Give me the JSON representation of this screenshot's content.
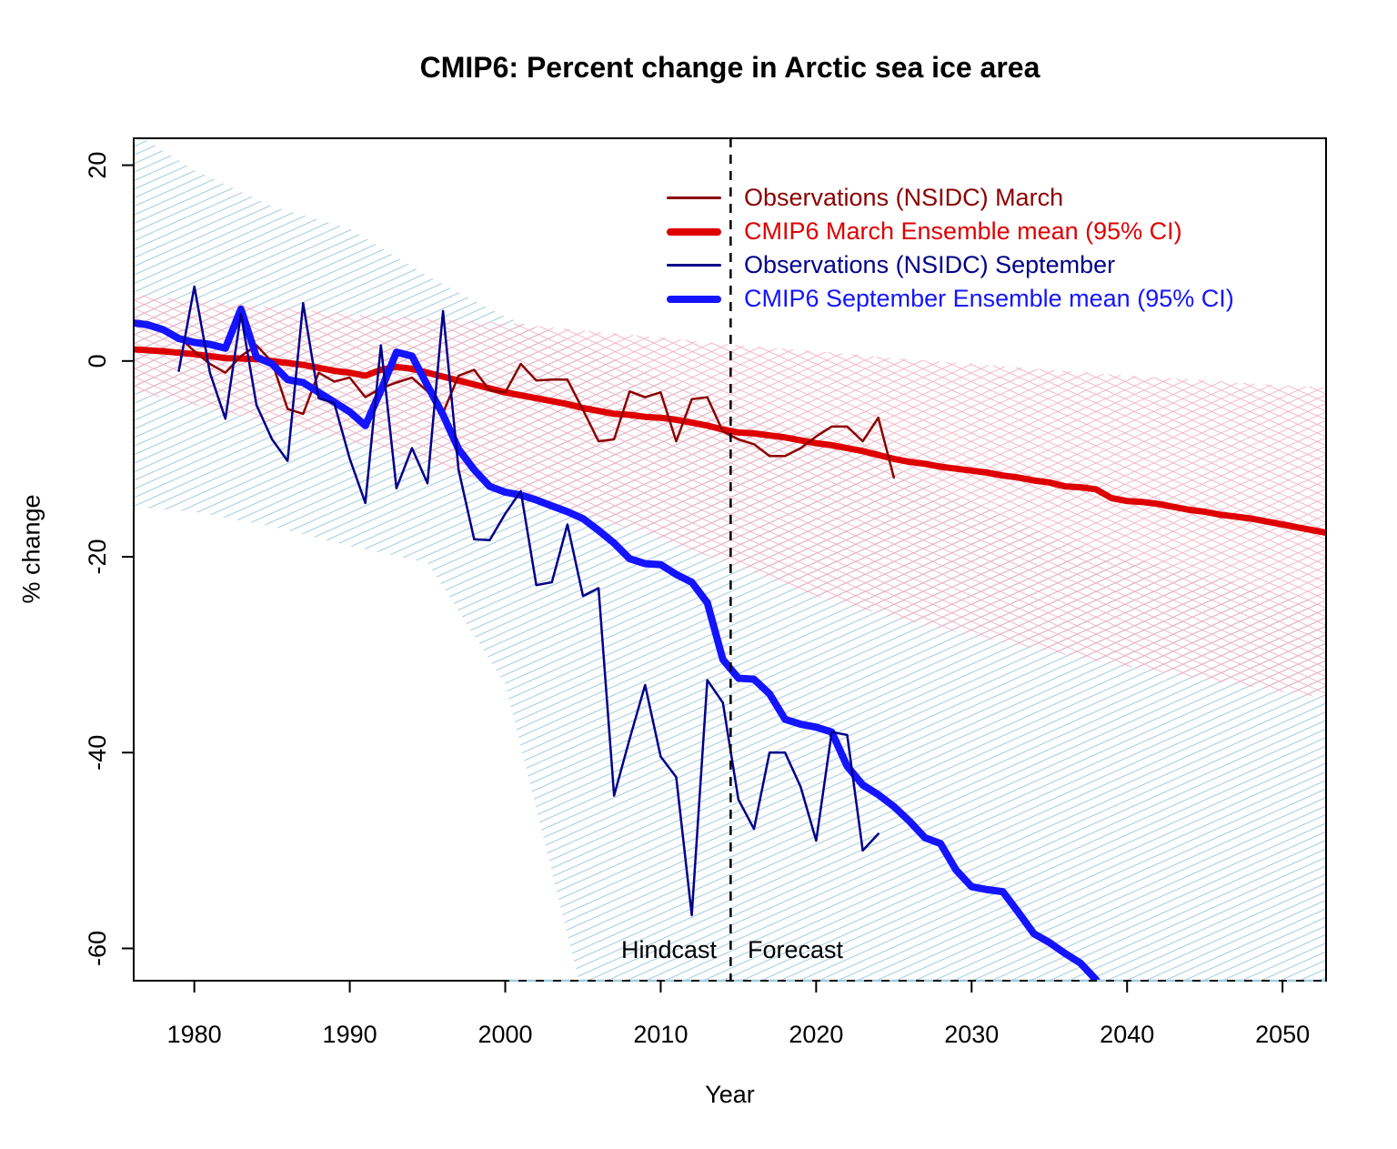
{
  "figure": {
    "title": "CMIP6: Percent change in Arctic sea ice area",
    "x_axis_label": "Year",
    "y_axis_label": "% change"
  },
  "legend": {
    "items": [
      {
        "label": "Observations (NSIDC) March",
        "color": "#8B0000",
        "thick": false
      },
      {
        "label": "CMIP6 March Ensemble mean (95% CI)",
        "color": "#DE0000",
        "thick": true
      },
      {
        "label": "Observations (NSIDC) September",
        "color": "#00008B",
        "thick": false
      },
      {
        "label": "CMIP6 September Ensemble mean (95% CI)",
        "color": "#1414FF",
        "thick": true
      }
    ]
  },
  "annotations": {
    "hindcast_label": "Hindcast",
    "forecast_label": "Forecast",
    "divider_year": 2014.5
  },
  "colors": {
    "march_obs": "#8B0000",
    "march_mean": "#DE0000",
    "sept_obs": "#00008B",
    "sept_mean": "#1414FF",
    "march_ci_hatch": "#F2AEC0",
    "sept_ci_hatch": "#A3CBDF",
    "axis": "#000000"
  },
  "chart_data": {
    "type": "line",
    "title": "CMIP6: Percent change in Arctic sea ice area",
    "xlabel": "Year",
    "ylabel": "% change",
    "xlim": [
      1976.1,
      2052.8
    ],
    "ylim": [
      -63.3,
      22.75
    ],
    "x_ticks": [
      1980,
      1990,
      2000,
      2010,
      2020,
      2030,
      2040,
      2050
    ],
    "y_ticks": [
      20,
      0,
      -20,
      -40,
      -60
    ],
    "grid": false,
    "legend_position": "top-right-inside",
    "bands": [
      {
        "name": "CMIP6 March 95% CI",
        "hatch_color": "#F2AEC0",
        "cross_hatch": true,
        "years": [
          1976,
          1980,
          1985,
          1990,
          1995,
          2000,
          2005,
          2010,
          2015,
          2020,
          2025,
          2030,
          2035,
          2040,
          2045,
          2050,
          2053
        ],
        "upper": [
          6.8,
          6.2,
          5.5,
          4.8,
          4.3,
          3.9,
          3.1,
          2.4,
          1.6,
          1.0,
          0.3,
          -0.3,
          -0.9,
          -1.5,
          -2.0,
          -2.5,
          -2.7
        ],
        "lower": [
          -3.0,
          -4.5,
          -6.3,
          -8.2,
          -10.5,
          -13.0,
          -15.5,
          -18.2,
          -21.0,
          -24.0,
          -26.2,
          -28.0,
          -29.7,
          -31.2,
          -32.5,
          -33.8,
          -34.5
        ]
      },
      {
        "name": "CMIP6 September 95% CI",
        "hatch_color": "#A3CBDF",
        "cross_hatch": false,
        "years": [
          1976,
          1980,
          1985,
          1990,
          1995,
          2000,
          2005,
          2010,
          2015,
          2020,
          2025,
          2030,
          2035,
          2040,
          2045,
          2050,
          2053
        ],
        "upper": [
          23.5,
          19.5,
          15.8,
          13.5,
          8.7,
          4.5,
          1.5,
          -1.5,
          -4.5,
          -7.5,
          -11.0,
          -14.5,
          -18.0,
          -20.0,
          -21.8,
          -23.8,
          -25.0
        ],
        "lower": [
          -14.9,
          -15.4,
          -16.9,
          -18.9,
          -20.6,
          -33.0,
          -65.0,
          -75.0,
          -75.0,
          -75.0,
          -75.0,
          -75.0,
          -75.0,
          -75.0,
          -75.0,
          -75.0,
          -75.0
        ]
      }
    ],
    "series": [
      {
        "name": "CMIP6 March Ensemble mean",
        "color": "#DE0000",
        "width": 7,
        "years": [
          1976,
          1978,
          1980,
          1982,
          1984,
          1986,
          1987,
          1988,
          1989,
          1990,
          1991,
          1992,
          1993,
          1994,
          1995,
          1996,
          1997,
          1998,
          1999,
          2000,
          2001,
          2002,
          2003,
          2004,
          2005,
          2006,
          2007,
          2008,
          2009,
          2010,
          2011,
          2012,
          2013,
          2014,
          2015,
          2016,
          2017,
          2018,
          2019,
          2020,
          2021,
          2022,
          2023,
          2024,
          2025,
          2026,
          2027,
          2028,
          2029,
          2030,
          2031,
          2032,
          2033,
          2034,
          2035,
          2036,
          2037,
          2038,
          2039,
          2040,
          2041,
          2042,
          2043,
          2044,
          2045,
          2046,
          2047,
          2048,
          2049,
          2050,
          2051,
          2052,
          2053
        ],
        "values": [
          1.2,
          1.0,
          0.7,
          0.3,
          0.2,
          -0.2,
          -0.4,
          -0.7,
          -1.0,
          -1.2,
          -1.5,
          -0.9,
          -0.6,
          -0.8,
          -1.2,
          -1.6,
          -2.0,
          -2.4,
          -2.8,
          -3.2,
          -3.5,
          -3.8,
          -4.1,
          -4.4,
          -4.8,
          -5.1,
          -5.4,
          -5.5,
          -5.7,
          -5.8,
          -6.0,
          -6.3,
          -6.6,
          -7.0,
          -7.3,
          -7.4,
          -7.6,
          -7.8,
          -8.1,
          -8.4,
          -8.6,
          -8.9,
          -9.2,
          -9.6,
          -10.0,
          -10.3,
          -10.5,
          -10.8,
          -11.0,
          -11.2,
          -11.4,
          -11.7,
          -11.9,
          -12.2,
          -12.4,
          -12.8,
          -12.9,
          -13.1,
          -14.0,
          -14.3,
          -14.4,
          -14.6,
          -14.9,
          -15.2,
          -15.4,
          -15.7,
          -15.9,
          -16.1,
          -16.4,
          -16.7,
          -17.0,
          -17.3,
          -17.6
        ]
      },
      {
        "name": "Observations (NSIDC) March",
        "color": "#8B0000",
        "width": 2.5,
        "years": [
          1979,
          1980,
          1981,
          1982,
          1983,
          1984,
          1985,
          1986,
          1987,
          1988,
          1989,
          1990,
          1991,
          1992,
          1993,
          1994,
          1995,
          1996,
          1997,
          1998,
          1999,
          2000,
          2001,
          2002,
          2003,
          2004,
          2005,
          2006,
          2007,
          2008,
          2009,
          2010,
          2011,
          2012,
          2013,
          2014,
          2015,
          2016,
          2017,
          2018,
          2019,
          2020,
          2021,
          2022,
          2023,
          2024,
          2025
        ],
        "values": [
          2.5,
          1.0,
          -0.3,
          -1.2,
          0.5,
          1.6,
          -0.1,
          -4.9,
          -5.4,
          -1.2,
          -2.1,
          -1.7,
          -3.7,
          -2.8,
          -2.2,
          -1.7,
          -3.1,
          -5.3,
          -1.5,
          -0.9,
          -3.0,
          -3.2,
          -0.3,
          -2.0,
          -1.9,
          -1.9,
          -5.0,
          -8.2,
          -8.0,
          -3.1,
          -3.7,
          -3.2,
          -8.2,
          -3.9,
          -3.7,
          -7.2,
          -8.0,
          -8.5,
          -9.7,
          -9.7,
          -8.9,
          -7.7,
          -6.7,
          -6.7,
          -8.2,
          -5.8,
          -11.9
        ]
      },
      {
        "name": "CMIP6 September Ensemble mean",
        "color": "#1414FF",
        "width": 8,
        "years": [
          1976,
          1977,
          1978,
          1979,
          1980,
          1981,
          1982,
          1983,
          1984,
          1985,
          1986,
          1987,
          1988,
          1989,
          1990,
          1991,
          1992,
          1993,
          1994,
          1995,
          1996,
          1997,
          1998,
          1999,
          2000,
          2001,
          2002,
          2003,
          2004,
          2005,
          2006,
          2007,
          2008,
          2009,
          2010,
          2011,
          2012,
          2013,
          2014,
          2015,
          2016,
          2017,
          2018,
          2019,
          2020,
          2021,
          2022,
          2023,
          2024,
          2025,
          2026,
          2027,
          2028,
          2029,
          2030,
          2031,
          2032,
          2033,
          2034,
          2035,
          2036,
          2037,
          2038,
          2038.6
        ],
        "values": [
          3.9,
          3.7,
          3.2,
          2.3,
          1.9,
          1.7,
          1.3,
          5.3,
          0.4,
          -0.3,
          -1.9,
          -2.2,
          -3.2,
          -4.2,
          -5.2,
          -6.6,
          -3.0,
          0.9,
          0.5,
          -2.5,
          -5.5,
          -9.0,
          -11.1,
          -12.8,
          -13.4,
          -13.7,
          -14.2,
          -14.8,
          -15.4,
          -16.1,
          -17.3,
          -18.6,
          -20.2,
          -20.7,
          -20.8,
          -21.8,
          -22.6,
          -24.7,
          -30.5,
          -32.4,
          -32.5,
          -34.0,
          -36.6,
          -37.1,
          -37.4,
          -37.9,
          -41.4,
          -43.3,
          -44.3,
          -45.5,
          -47.0,
          -48.7,
          -49.3,
          -52.0,
          -53.7,
          -54.0,
          -54.2,
          -56.3,
          -58.5,
          -59.4,
          -60.5,
          -61.5,
          -63.2,
          -64.5
        ]
      },
      {
        "name": "Observations (NSIDC) September",
        "color": "#00008B",
        "width": 2.5,
        "years": [
          1979,
          1980,
          1981,
          1982,
          1983,
          1984,
          1985,
          1986,
          1987,
          1988,
          1989,
          1990,
          1991,
          1992,
          1993,
          1994,
          1995,
          1996,
          1997,
          1998,
          1999,
          2000,
          2001,
          2002,
          2003,
          2004,
          2005,
          2006,
          2007,
          2008,
          2009,
          2010,
          2011,
          2012,
          2013,
          2014,
          2015,
          2016,
          2017,
          2018,
          2019,
          2020,
          2021,
          2022,
          2023,
          2024
        ],
        "values": [
          -1.0,
          7.6,
          -1.2,
          -5.9,
          4.8,
          -4.5,
          -8.0,
          -10.2,
          5.9,
          -3.8,
          -4.3,
          -10.0,
          -14.5,
          1.6,
          -13.0,
          -8.9,
          -12.5,
          5.1,
          -11.1,
          -18.2,
          -18.3,
          -15.6,
          -13.3,
          -22.9,
          -22.6,
          -16.7,
          -24.0,
          -23.2,
          -44.4,
          -38.6,
          -33.1,
          -40.4,
          -42.5,
          -56.6,
          -32.6,
          -34.9,
          -44.8,
          -47.8,
          -40.0,
          -40.0,
          -43.5,
          -49.0,
          -37.9,
          -38.2,
          -50.0,
          -48.3
        ]
      }
    ]
  }
}
